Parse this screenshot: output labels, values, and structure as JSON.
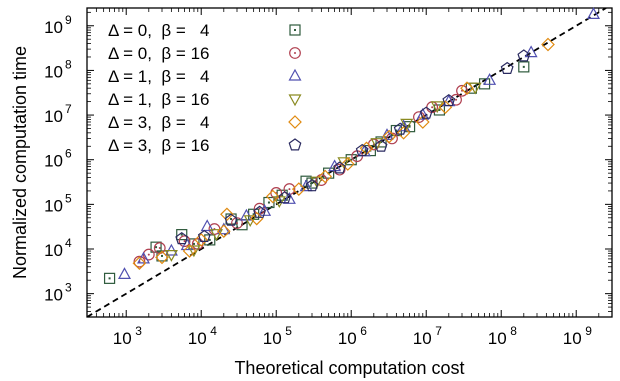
{
  "chart_data": {
    "type": "scatter",
    "title": "",
    "xlabel": "Theoretical computation cost",
    "ylabel": "Normalized computation time",
    "xscale": "log",
    "yscale": "log",
    "xlim": [
      300,
      3000000000
    ],
    "ylim": [
      300,
      2500000000
    ],
    "x_ticks": [
      {
        "value": 1000,
        "label": "10",
        "exp": "3"
      },
      {
        "value": 10000,
        "label": "10",
        "exp": "4"
      },
      {
        "value": 100000,
        "label": "10",
        "exp": "5"
      },
      {
        "value": 1000000,
        "label": "10",
        "exp": "6"
      },
      {
        "value": 10000000,
        "label": "10",
        "exp": "7"
      },
      {
        "value": 100000000,
        "label": "10",
        "exp": "8"
      },
      {
        "value": 1000000000,
        "label": "10",
        "exp": "9"
      }
    ],
    "y_ticks": [
      {
        "value": 1000,
        "label": "10",
        "exp": "3"
      },
      {
        "value": 10000,
        "label": "10",
        "exp": "4"
      },
      {
        "value": 100000,
        "label": "10",
        "exp": "5"
      },
      {
        "value": 1000000,
        "label": "10",
        "exp": "6"
      },
      {
        "value": 10000000,
        "label": "10",
        "exp": "7"
      },
      {
        "value": 100000000,
        "label": "10",
        "exp": "8"
      },
      {
        "value": 1000000000,
        "label": "10",
        "exp": "9"
      }
    ],
    "grid": false,
    "legend_position": "top-left",
    "reference_line": {
      "style": "dashed",
      "color": "#000000",
      "points": [
        [
          300,
          300
        ],
        [
          2500000000,
          2500000000
        ]
      ]
    },
    "series": [
      {
        "name": "Δ = 0,  β =   4",
        "marker": "square",
        "color": "#2e5a3c",
        "points": [
          [
            600,
            2200
          ],
          [
            2500,
            11000
          ],
          [
            3000,
            7000
          ],
          [
            5500,
            21000
          ],
          [
            8000,
            13000
          ],
          [
            13000,
            16000
          ],
          [
            25000,
            47000
          ],
          [
            35000,
            35000
          ],
          [
            50000,
            60000
          ],
          [
            80000,
            110000
          ],
          [
            120000,
            160000
          ],
          [
            250000,
            330000
          ],
          [
            300000,
            300000
          ],
          [
            500000,
            500000
          ],
          [
            1000000,
            1000000
          ],
          [
            1800000,
            1600000
          ],
          [
            2500000,
            2500000
          ],
          [
            4000000,
            4500000
          ],
          [
            6000000,
            5500000
          ],
          [
            15000000,
            13000000
          ],
          [
            40000000,
            40000000
          ],
          [
            60000000,
            50000000
          ],
          [
            200000000,
            120000000
          ]
        ]
      },
      {
        "name": "Δ = 0,  β = 16",
        "marker": "circle",
        "color": "#b04050",
        "points": [
          [
            1500,
            5200
          ],
          [
            2000,
            7500
          ],
          [
            2800,
            10500
          ],
          [
            6000,
            15000
          ],
          [
            9000,
            13000
          ],
          [
            15000,
            28000
          ],
          [
            30000,
            38000
          ],
          [
            60000,
            80000
          ],
          [
            100000,
            180000
          ],
          [
            150000,
            220000
          ],
          [
            400000,
            350000
          ],
          [
            700000,
            600000
          ],
          [
            1200000,
            1200000
          ],
          [
            2000000,
            2200000
          ],
          [
            3500000,
            3000000
          ],
          [
            8000000,
            9000000
          ],
          [
            12000000,
            15000000
          ],
          [
            25000000,
            22000000
          ],
          [
            30000000,
            35000000
          ]
        ]
      },
      {
        "name": "Δ = 1,  β =   4",
        "marker": "triangle-up",
        "color": "#5050b0",
        "points": [
          [
            950,
            2700
          ],
          [
            1700,
            6000
          ],
          [
            4000,
            9000
          ],
          [
            6500,
            12000
          ],
          [
            12000,
            32000
          ],
          [
            20000,
            27000
          ],
          [
            40000,
            55000
          ],
          [
            70000,
            70000
          ],
          [
            150000,
            130000
          ],
          [
            250000,
            250000
          ],
          [
            600000,
            700000
          ],
          [
            1500000,
            1500000
          ],
          [
            3000000,
            3500000
          ],
          [
            5000000,
            5500000
          ],
          [
            9000000,
            10000000
          ],
          [
            20000000,
            20000000
          ],
          [
            70000000,
            60000000
          ],
          [
            250000000,
            250000000
          ],
          [
            1700000000,
            1800000000
          ]
        ]
      },
      {
        "name": "Δ = 1,  β = 16",
        "marker": "triangle-down",
        "color": "#8a8a20",
        "points": [
          [
            4000,
            7500
          ],
          [
            8000,
            9500
          ],
          [
            16000,
            22000
          ],
          [
            45000,
            45000
          ],
          [
            110000,
            120000
          ],
          [
            350000,
            330000
          ],
          [
            800000,
            900000
          ],
          [
            2200000,
            2400000
          ],
          [
            5500000,
            6500000
          ],
          [
            14000000,
            16000000
          ],
          [
            45000000,
            42000000
          ]
        ]
      },
      {
        "name": "Δ = 3,  β =   4",
        "marker": "diamond",
        "color": "#e08a10",
        "points": [
          [
            1500,
            4800
          ],
          [
            3000,
            6500
          ],
          [
            7000,
            9000
          ],
          [
            10000,
            16000
          ],
          [
            20000,
            25000
          ],
          [
            22000,
            60000
          ],
          [
            55000,
            48000
          ],
          [
            90000,
            150000
          ],
          [
            200000,
            220000
          ],
          [
            450000,
            420000
          ],
          [
            900000,
            800000
          ],
          [
            1600000,
            1800000
          ],
          [
            3200000,
            3300000
          ],
          [
            5000000,
            4000000
          ],
          [
            9000000,
            7000000
          ],
          [
            18000000,
            15000000
          ],
          [
            35000000,
            40000000
          ],
          [
            420000000,
            380000000
          ]
        ]
      },
      {
        "name": "Δ = 3,  β = 16",
        "marker": "pentagon",
        "color": "#2a2a60",
        "points": [
          [
            5500,
            17000
          ],
          [
            11000,
            19000
          ],
          [
            25000,
            44000
          ],
          [
            60000,
            66000
          ],
          [
            130000,
            140000
          ],
          [
            300000,
            260000
          ],
          [
            700000,
            650000
          ],
          [
            1400000,
            1600000
          ],
          [
            2500000,
            2000000
          ],
          [
            4500000,
            4800000
          ],
          [
            10000000,
            11000000
          ],
          [
            20000000,
            21000000
          ],
          [
            120000000,
            110000000
          ],
          [
            200000000,
            210000000
          ]
        ]
      }
    ]
  }
}
